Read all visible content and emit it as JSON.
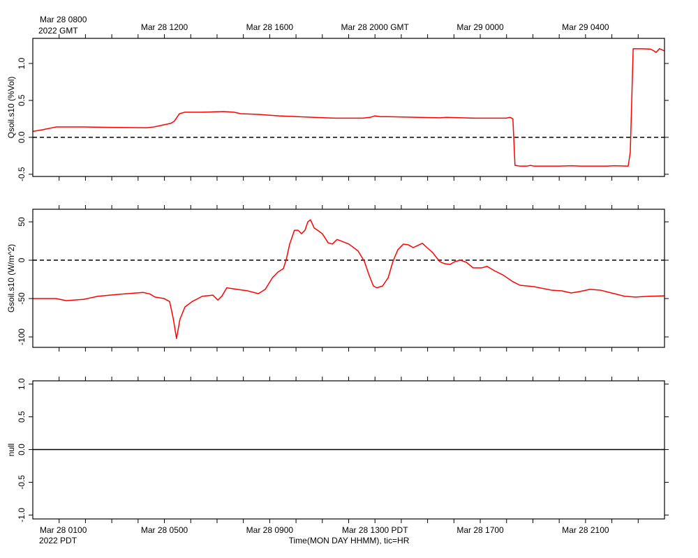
{
  "chart_data": [
    {
      "type": "line",
      "ylabel": "Qsoil.s10 (%Vol)",
      "xlim": [
        0,
        24
      ],
      "xminorticks": [
        1,
        2,
        3,
        4,
        5,
        6,
        7,
        8,
        9,
        10,
        11,
        12,
        13,
        14,
        15,
        16,
        17,
        18,
        19,
        20,
        21,
        22,
        23
      ],
      "x2ticks": [
        {
          "value": 1,
          "label": "Mar 28 0800"
        },
        {
          "value": 5,
          "label": "Mar 28 1200"
        },
        {
          "value": 9,
          "label": "Mar 28 1600"
        },
        {
          "value": 13,
          "label": "Mar 28 2000 GMT"
        },
        {
          "value": 17,
          "label": "Mar 29 0000"
        },
        {
          "value": 21,
          "label": "Mar 29 0400"
        }
      ],
      "x2_note": "2022 GMT",
      "ylim": [
        -0.53,
        1.34
      ],
      "yticks": [
        -0.5,
        {
          "value": 0,
          "label": "0.0"
        },
        0.5,
        {
          "value": 1,
          "label": "1.0"
        }
      ],
      "hline": {
        "value": 0,
        "style": "dashed",
        "color": "#000000"
      },
      "x": [
        0,
        0.34,
        0.88,
        1.94,
        3.0,
        4.32,
        4.59,
        4.99,
        5.25,
        5.38,
        5.57,
        5.78,
        6.44,
        7.24,
        7.64,
        7.9,
        8.57,
        9.36,
        10.69,
        11.48,
        12.54,
        12.81,
        12.99,
        13.21,
        13.47,
        14.66,
        15.46,
        15.72,
        16.79,
        17.98,
        18.14,
        18.24,
        18.32,
        18.51,
        18.77,
        18.91,
        19.04,
        19.97,
        20.5,
        20.76,
        21.82,
        22.09,
        22.62,
        22.7,
        22.81,
        23.15,
        23.47,
        23.6,
        23.68,
        23.81,
        24.0
      ],
      "series": [
        {
          "color": "#ff0000",
          "values": [
            0.08,
            0.1,
            0.14,
            0.14,
            0.135,
            0.13,
            0.14,
            0.17,
            0.19,
            0.22,
            0.32,
            0.34,
            0.34,
            0.35,
            0.34,
            0.32,
            0.31,
            0.29,
            0.27,
            0.26,
            0.26,
            0.27,
            0.29,
            0.28,
            0.28,
            0.27,
            0.265,
            0.27,
            0.26,
            0.26,
            0.27,
            0.25,
            -0.38,
            -0.39,
            -0.39,
            -0.38,
            -0.39,
            -0.39,
            -0.385,
            -0.39,
            -0.39,
            -0.385,
            -0.39,
            -0.2,
            1.2,
            1.2,
            1.195,
            1.17,
            1.15,
            1.2,
            1.17
          ]
        }
      ]
    },
    {
      "type": "line",
      "ylabel": "Gsoil.s10 (W/m^2)",
      "xlim": [
        0,
        24
      ],
      "xminorticks": [
        1,
        2,
        3,
        4,
        5,
        6,
        7,
        8,
        9,
        10,
        11,
        12,
        13,
        14,
        15,
        16,
        17,
        18,
        19,
        20,
        21,
        22,
        23
      ],
      "ylim": [
        -113.6,
        66.4
      ],
      "yticks": [
        -100,
        -50,
        0,
        50
      ],
      "hline": {
        "value": 0,
        "style": "dashed",
        "color": "#000000"
      },
      "x": [
        0,
        0.88,
        1.27,
        1.94,
        2.47,
        3.26,
        4.19,
        4.45,
        4.64,
        4.99,
        5.2,
        5.33,
        5.46,
        5.59,
        5.78,
        6.05,
        6.44,
        6.84,
        7.03,
        7.19,
        7.37,
        7.77,
        8.17,
        8.57,
        8.83,
        9.1,
        9.31,
        9.52,
        9.63,
        9.76,
        9.94,
        10.08,
        10.21,
        10.34,
        10.45,
        10.55,
        10.69,
        10.82,
        11.0,
        11.22,
        11.38,
        11.56,
        11.75,
        12.01,
        12.36,
        12.6,
        12.76,
        12.94,
        13.07,
        13.29,
        13.5,
        13.68,
        13.87,
        14.08,
        14.27,
        14.45,
        14.61,
        14.8,
        14.98,
        15.19,
        15.46,
        15.64,
        15.85,
        16.04,
        16.25,
        16.47,
        16.73,
        17.05,
        17.26,
        17.53,
        17.85,
        18.24,
        18.51,
        19.04,
        19.7,
        20.1,
        20.45,
        20.76,
        21.16,
        21.56,
        22.09,
        22.49,
        22.89,
        23.42,
        24.0
      ],
      "series": [
        {
          "color": "#ff0000",
          "values": [
            -50,
            -50,
            -52.7,
            -51,
            -47,
            -44.5,
            -42,
            -44,
            -48,
            -50,
            -54,
            -75,
            -102,
            -77,
            -61,
            -54,
            -47,
            -45.5,
            -52,
            -46.5,
            -36,
            -38,
            -40,
            -43.6,
            -38,
            -23,
            -15.5,
            -11,
            1,
            21,
            39,
            39,
            34.5,
            39,
            50,
            52.7,
            42,
            39,
            34.5,
            22.7,
            21,
            27,
            24.5,
            21,
            12,
            -1.8,
            -18,
            -33.6,
            -36,
            -33.6,
            -23,
            -1.8,
            13.6,
            21,
            20,
            16.4,
            19,
            22,
            16.4,
            10,
            -1.8,
            -4.5,
            -5.5,
            -1.8,
            0,
            -2.7,
            -10,
            -10,
            -8,
            -13.6,
            -19,
            -28,
            -32.7,
            -34.5,
            -39,
            -40,
            -42.7,
            -41,
            -38,
            -39,
            -43.6,
            -47,
            -48,
            -47,
            -46.4
          ]
        }
      ]
    },
    {
      "type": "line",
      "ylabel": "null",
      "xlim": [
        0,
        24
      ],
      "xminorticks": [
        1,
        2,
        3,
        4,
        5,
        6,
        7,
        8,
        9,
        10,
        11,
        12,
        13,
        14,
        15,
        16,
        17,
        18,
        19,
        20,
        21,
        22,
        23
      ],
      "xticks": [
        {
          "value": 1,
          "label": "Mar 28 0100"
        },
        {
          "value": 5,
          "label": "Mar 28 0500"
        },
        {
          "value": 9,
          "label": "Mar 28 0900"
        },
        {
          "value": 13,
          "label": "Mar 28 1300 PDT"
        },
        {
          "value": 17,
          "label": "Mar 28 1700"
        },
        {
          "value": 21,
          "label": "Mar 28 2100"
        }
      ],
      "x_note": "2022 PDT",
      "xlabel": "Time(MON DAY HHMM), tic=HR",
      "ylim": [
        -1.06,
        1.05
      ],
      "yticks": [
        {
          "value": -1,
          "label": "-1.0"
        },
        -0.5,
        {
          "value": 0,
          "label": "0.0"
        },
        0.5,
        {
          "value": 1,
          "label": "1.0"
        }
      ],
      "hline": {
        "value": 0,
        "style": "solid",
        "color": "#000000"
      },
      "series": []
    }
  ]
}
